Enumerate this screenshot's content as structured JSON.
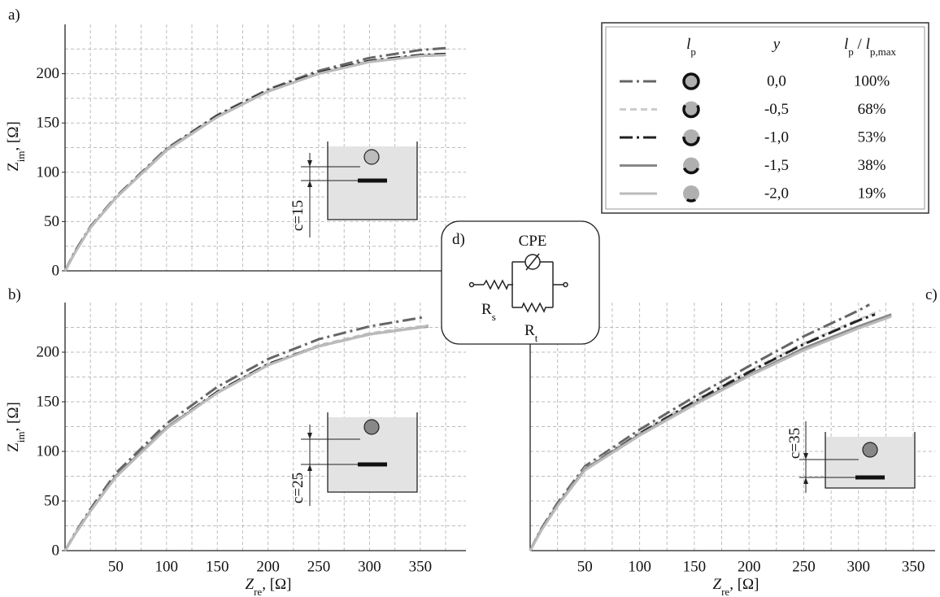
{
  "chart_data": [
    {
      "type": "line",
      "panel_label": "a)",
      "ylabel": [
        "Z",
        "im",
        ", [Ω]"
      ],
      "annotation": "c=15",
      "xlim": [
        0,
        395
      ],
      "ylim": [
        0,
        250
      ],
      "xticks": [
        50,
        100,
        150,
        200,
        250,
        300,
        350
      ],
      "yticks": [
        0,
        50,
        100,
        150,
        200
      ],
      "show_xtick_labels": false,
      "show_ytick_labels": true,
      "grid": true,
      "minor_grid": true,
      "series": [
        {
          "color": "#666666",
          "dash": "dash-dot",
          "x": [
            0,
            10,
            25,
            50,
            100,
            150,
            200,
            250,
            300,
            350,
            375
          ],
          "values": [
            0,
            20,
            45,
            75,
            124,
            158,
            184,
            203,
            216,
            224,
            226
          ]
        },
        {
          "color": "#cccccc",
          "dash": "dashed",
          "x": [
            0,
            10,
            25,
            50,
            100,
            150,
            200,
            250,
            300,
            350,
            375
          ],
          "values": [
            0,
            20,
            44,
            74,
            123,
            157,
            183,
            201,
            213,
            219,
            220
          ]
        },
        {
          "color": "#222222",
          "dash": "dash-dot",
          "x": [
            0,
            10,
            25,
            50,
            100,
            150,
            200,
            250,
            300,
            350,
            375
          ],
          "values": [
            0,
            20,
            44,
            74,
            123,
            157,
            183,
            201,
            213,
            219,
            220
          ]
        },
        {
          "color": "#888888",
          "dash": "solid",
          "x": [
            0,
            10,
            25,
            50,
            100,
            150,
            200,
            250,
            300,
            350,
            375
          ],
          "values": [
            0,
            19,
            44,
            74,
            123,
            156,
            182,
            200,
            212,
            218,
            219
          ]
        },
        {
          "color": "#bbbbbb",
          "dash": "solid",
          "x": [
            0,
            10,
            25,
            50,
            100,
            150,
            200,
            250,
            300,
            350,
            375
          ],
          "values": [
            0,
            19,
            44,
            74,
            122,
            156,
            182,
            200,
            212,
            218,
            219
          ]
        }
      ]
    },
    {
      "type": "line",
      "panel_label": "b)",
      "ylabel": [
        "Z",
        "im",
        ", [Ω]"
      ],
      "xlabel": [
        "Z",
        "re",
        ", [Ω]"
      ],
      "annotation": "c=25",
      "xlim": [
        0,
        395
      ],
      "ylim": [
        0,
        250
      ],
      "xticks": [
        50,
        100,
        150,
        200,
        250,
        300,
        350
      ],
      "yticks": [
        0,
        50,
        100,
        150,
        200
      ],
      "show_xtick_labels": true,
      "show_ytick_labels": true,
      "grid": true,
      "minor_grid": true,
      "series": [
        {
          "color": "#666666",
          "dash": "dash-dot",
          "x": [
            0,
            10,
            25,
            50,
            100,
            150,
            200,
            250,
            300,
            352
          ],
          "values": [
            0,
            18,
            42,
            78,
            128,
            165,
            193,
            213,
            226,
            235
          ]
        },
        {
          "color": "#cccccc",
          "dash": "dashed",
          "x": [
            0,
            10,
            25,
            50,
            100,
            150,
            200,
            250,
            300,
            350,
            358
          ],
          "values": [
            0,
            17,
            40,
            75,
            124,
            160,
            188,
            207,
            219,
            226,
            227
          ]
        },
        {
          "color": "#222222",
          "dash": "dash-dot",
          "x": [
            0,
            10,
            25,
            50,
            100,
            150,
            200,
            250,
            300,
            350,
            358
          ],
          "values": [
            0,
            17,
            40,
            75,
            124,
            160,
            188,
            206,
            218,
            225,
            226
          ]
        },
        {
          "color": "#888888",
          "dash": "solid",
          "x": [
            0,
            10,
            25,
            50,
            100,
            150,
            200,
            250,
            300,
            350,
            358
          ],
          "values": [
            0,
            17,
            40,
            75,
            124,
            159,
            187,
            206,
            218,
            225,
            226
          ]
        },
        {
          "color": "#bbbbbb",
          "dash": "solid",
          "x": [
            0,
            10,
            25,
            50,
            100,
            150,
            200,
            250,
            300,
            350,
            358
          ],
          "values": [
            0,
            17,
            40,
            74,
            123,
            159,
            187,
            206,
            218,
            225,
            227
          ]
        }
      ]
    },
    {
      "type": "line",
      "panel_label": "c)",
      "xlabel": [
        "Z",
        "re",
        ", [Ω]"
      ],
      "annotation": "c=35",
      "xlim": [
        0,
        370
      ],
      "ylim": [
        0,
        250
      ],
      "xticks": [
        50,
        100,
        150,
        200,
        250,
        300,
        350
      ],
      "yticks": [
        0,
        50,
        100,
        150,
        200
      ],
      "show_xtick_labels": true,
      "show_ytick_labels": false,
      "grid": true,
      "minor_grid": true,
      "series": [
        {
          "color": "#666666",
          "dash": "dash-dot",
          "x": [
            0,
            10,
            25,
            50,
            100,
            150,
            200,
            250,
            300,
            310
          ],
          "values": [
            0,
            22,
            48,
            85,
            122,
            155,
            186,
            216,
            242,
            248
          ]
        },
        {
          "color": "#cccccc",
          "dash": "dashed",
          "x": [
            0,
            10,
            25,
            50,
            100,
            150,
            200,
            250,
            300,
            320
          ],
          "values": [
            0,
            21,
            46,
            83,
            119,
            151,
            181,
            209,
            233,
            242
          ]
        },
        {
          "color": "#222222",
          "dash": "dash-dot",
          "x": [
            0,
            10,
            25,
            50,
            100,
            150,
            200,
            250,
            300,
            315
          ],
          "values": [
            0,
            21,
            46,
            82,
            118,
            150,
            180,
            208,
            232,
            238
          ]
        },
        {
          "color": "#888888",
          "dash": "solid",
          "x": [
            0,
            10,
            25,
            50,
            100,
            150,
            200,
            250,
            300,
            330
          ],
          "values": [
            0,
            21,
            46,
            82,
            117,
            148,
            177,
            204,
            226,
            238
          ]
        },
        {
          "color": "#bbbbbb",
          "dash": "solid",
          "x": [
            0,
            10,
            25,
            50,
            100,
            150,
            200,
            250,
            300,
            330
          ],
          "values": [
            0,
            20,
            45,
            81,
            116,
            147,
            176,
            202,
            224,
            236
          ]
        }
      ]
    }
  ],
  "legend": {
    "header_lp": [
      "l",
      "p"
    ],
    "header_y": "y",
    "header_ratio": [
      "l",
      "p",
      " / ",
      "l",
      "p,max"
    ],
    "y": [
      "0,0",
      "-0,5",
      "-1,0",
      "-1,5",
      "-2,0"
    ],
    "ratio": [
      100,
      68,
      53,
      38,
      19
    ],
    "ratio_labels": [
      "100%",
      "68%",
      "53%",
      "38%",
      "19%"
    ]
  },
  "circuit": {
    "label": "d)",
    "cpe": "CPE",
    "rs": [
      "R",
      "s"
    ],
    "rt": [
      "R",
      "t"
    ]
  }
}
